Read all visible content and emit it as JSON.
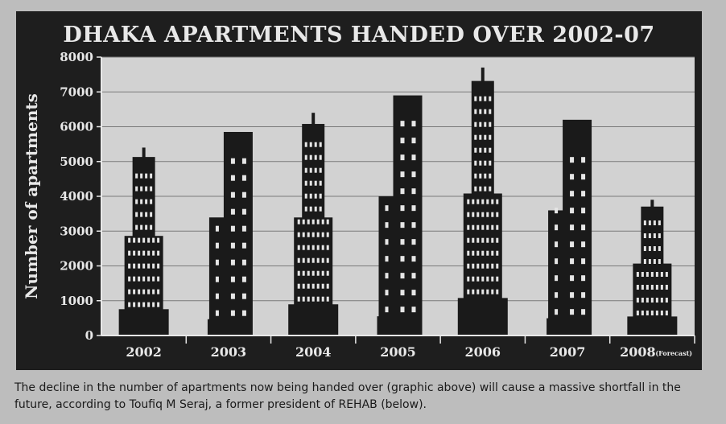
{
  "chart_data": {
    "type": "bar",
    "title": "DHAKA APARTMENTS HANDED OVER 2002-07",
    "ylabel": "Number of apartments",
    "xlabel": "",
    "categories": [
      "2002",
      "2003",
      "2004",
      "2005",
      "2006",
      "2007",
      "2008"
    ],
    "category_notes": [
      "",
      "",
      "",
      "",
      "",
      "",
      "(Forecast)"
    ],
    "values": [
      5400,
      5850,
      6400,
      6900,
      7700,
      6200,
      3900
    ],
    "ylim": [
      0,
      8000
    ],
    "yticks": [
      0,
      1000,
      2000,
      3000,
      4000,
      5000,
      6000,
      7000,
      8000
    ],
    "ytick_labels": [
      "0",
      "1000",
      "2000",
      "3000",
      "4000",
      "5000",
      "6000",
      "7000",
      "8000"
    ],
    "grid": true,
    "colors": {
      "panel": "#1e1e1e",
      "plot": "#d2d2d2",
      "bars": "#1a1a1a",
      "windows": "#e6e6e6",
      "text": "#e8e8e8",
      "grid": "#7a7a7a"
    }
  },
  "caption": "The decline in the number of apartments now being handed over (graphic above) will cause a massive shortfall in the future, according to Toufiq M Seraj, a former president of REHAB (below)."
}
